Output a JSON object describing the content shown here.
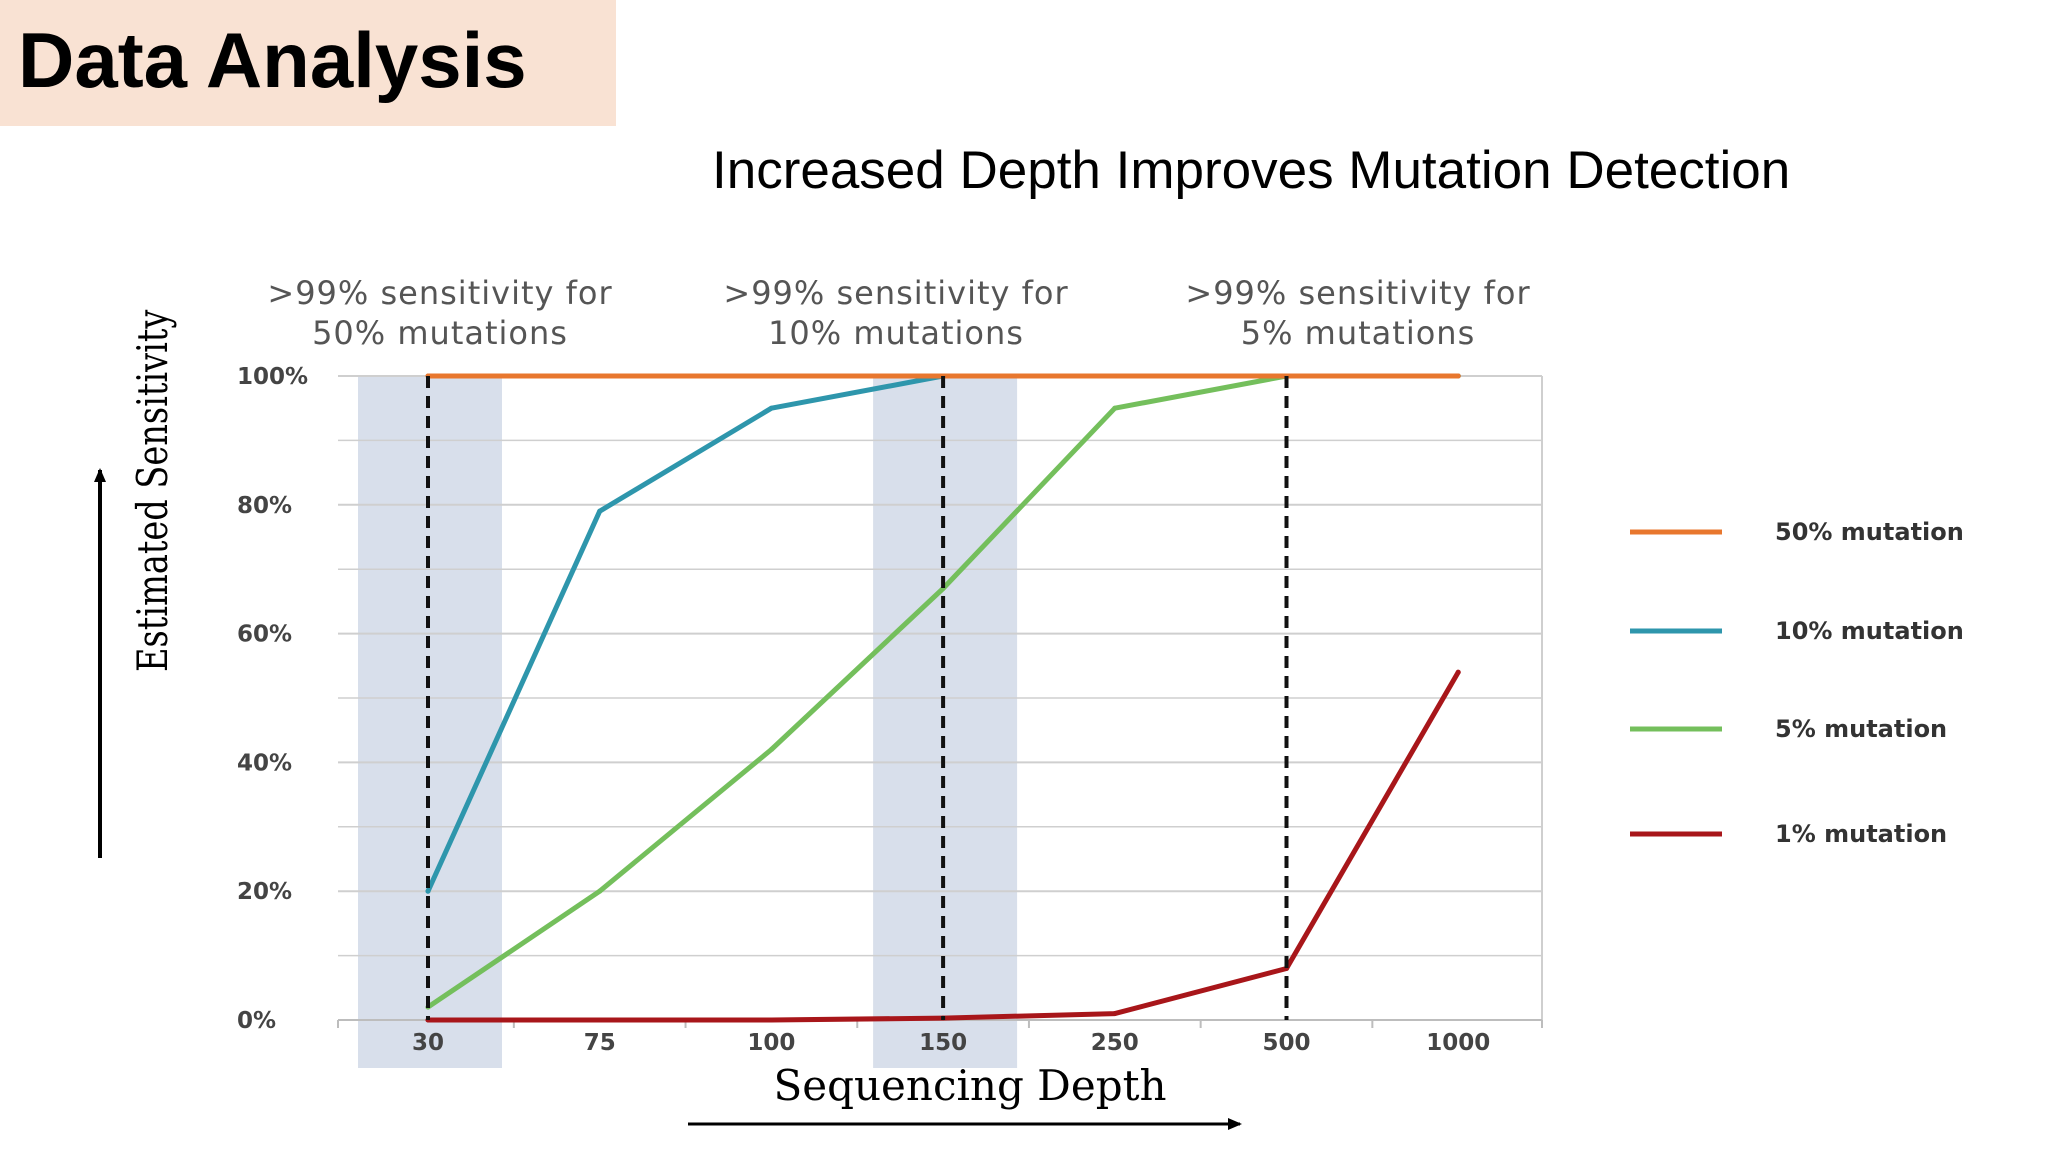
{
  "slide": {
    "title": "Data Analysis",
    "subtitle": "Increased Depth Improves Mutation Detection"
  },
  "colors": {
    "title_bg": "#f9e2d3",
    "band": "#d4dce9",
    "grid": "#cfcfcf"
  },
  "chart_data": {
    "type": "line",
    "xlabel": "Sequencing Depth",
    "ylabel": "Estimated Sensitivity",
    "categories": [
      "30",
      "75",
      "100",
      "150",
      "250",
      "500",
      "1000"
    ],
    "y_ticks": [
      "0%",
      "20%",
      "40%",
      "60%",
      "80%",
      "100%"
    ],
    "ylim": [
      0,
      100
    ],
    "grid": true,
    "legend_position": "right",
    "series": [
      {
        "name": "50% mutation",
        "color": "#e8772e",
        "values": [
          100,
          100,
          100,
          100,
          100,
          100,
          100
        ]
      },
      {
        "name": "10% mutation",
        "color": "#2e96ac",
        "values": [
          20,
          79,
          95,
          100,
          100,
          100,
          100
        ]
      },
      {
        "name": "5% mutation",
        "color": "#74bf5c",
        "values": [
          2,
          20,
          42,
          67,
          95,
          100,
          100
        ]
      },
      {
        "name": "1% mutation",
        "color": "#a8161a",
        "values": [
          0,
          0,
          0,
          0.3,
          1,
          8,
          54
        ]
      }
    ],
    "annotations": [
      {
        "lines": [
          ">99% sensitivity for",
          "50% mutations"
        ],
        "category_index": 0
      },
      {
        "lines": [
          ">99% sensitivity for",
          "10% mutations"
        ],
        "category_index": 3
      },
      {
        "lines": [
          ">99% sensitivity for",
          "5% mutations"
        ],
        "category_index": 5
      }
    ],
    "highlight_bands": [
      0,
      3
    ],
    "dashed_markers": [
      0,
      3,
      5
    ]
  }
}
